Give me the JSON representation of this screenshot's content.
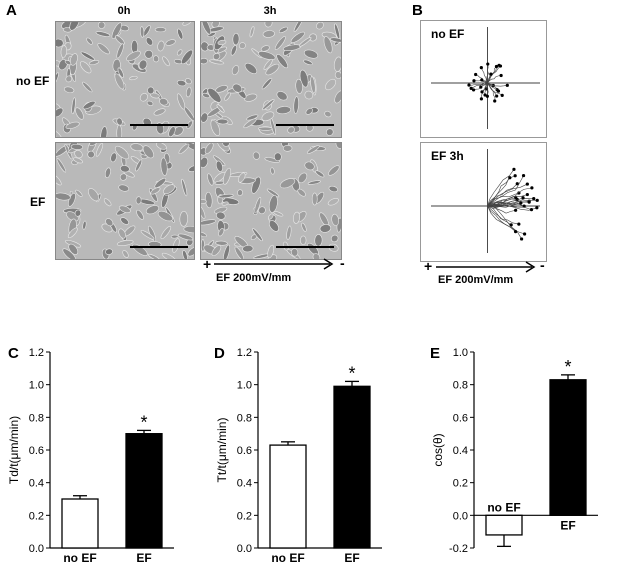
{
  "panel_labels": {
    "a": "A",
    "b": "B",
    "c": "C",
    "d": "D",
    "e": "E"
  },
  "micrographs": {
    "col_0h": "0h",
    "col_3h": "3h",
    "row_no_ef": "no EF",
    "row_ef": "EF",
    "ef_label": "EF 200mV/mm",
    "plus": "+",
    "minus": "-"
  },
  "tracking": {
    "top_label": "no EF",
    "bottom_label": "EF 3h",
    "ef_label": "EF 200mV/mm",
    "plus": "+",
    "minus": "-"
  },
  "chart_data": [
    {
      "type": "bar",
      "panel": "C",
      "categories": [
        "no EF",
        "EF"
      ],
      "values": [
        0.3,
        0.7
      ],
      "errors": [
        0.02,
        0.02
      ],
      "fills": [
        "#ffffff",
        "#000000"
      ],
      "ylabel": "Td/t(μm/min)",
      "ylim": [
        0,
        1.2
      ],
      "yticks": [
        "0.0",
        "0.2",
        "0.4",
        "0.6",
        "0.8",
        "1.0",
        "1.2"
      ],
      "annotation": "*"
    },
    {
      "type": "bar",
      "panel": "D",
      "categories": [
        "no EF",
        "EF"
      ],
      "values": [
        0.63,
        0.99
      ],
      "errors": [
        0.02,
        0.03
      ],
      "fills": [
        "#ffffff",
        "#000000"
      ],
      "ylabel": "Tt/t(μm/min)",
      "ylim": [
        0,
        1.2
      ],
      "yticks": [
        "0.0",
        "0.2",
        "0.4",
        "0.6",
        "0.8",
        "1.0",
        "1.2"
      ],
      "annotation": "*"
    },
    {
      "type": "bar",
      "panel": "E",
      "categories": [
        "no EF",
        "EF"
      ],
      "values": [
        -0.12,
        0.83
      ],
      "errors": [
        0.07,
        0.03
      ],
      "fills": [
        "#ffffff",
        "#000000"
      ],
      "ylabel": "cos(θ)",
      "ylim": [
        -0.2,
        1.0
      ],
      "yticks": [
        "-0.2",
        "0.0",
        "0.2",
        "0.4",
        "0.6",
        "0.8",
        "1.0"
      ],
      "annotation": "*"
    }
  ]
}
